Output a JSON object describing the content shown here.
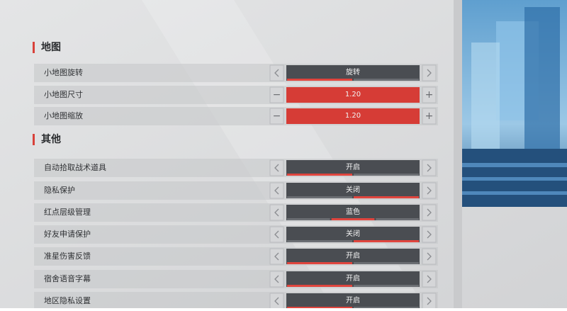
{
  "sections": [
    {
      "title": "地图",
      "rows": [
        {
          "label": "小地图旋转",
          "value": "旋转"
        },
        {
          "label": "小地图尺寸",
          "value": "1.20"
        },
        {
          "label": "小地图缩放",
          "value": "1.20"
        }
      ]
    },
    {
      "title": "其他",
      "rows": [
        {
          "label": "自动拾取战术道具",
          "value": "开启"
        },
        {
          "label": "隐私保护",
          "value": "关闭"
        },
        {
          "label": "红点层级管理",
          "value": "蓝色"
        },
        {
          "label": "好友申请保护",
          "value": "关闭"
        },
        {
          "label": "准星伤害反馈",
          "value": "开启"
        },
        {
          "label": "宿舍语音字幕",
          "value": "开启"
        },
        {
          "label": "地区隐私设置",
          "value": "开启"
        }
      ]
    }
  ]
}
